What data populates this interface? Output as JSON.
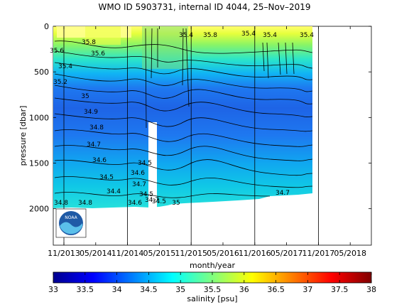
{
  "chart_data": {
    "type": "heatmap",
    "title": "WMO ID 5903731, internal ID 4044, 25–Nov–2019",
    "xlabel": "month/year",
    "ylabel": "pressure [dbar]",
    "x_ticks": [
      "11/2013",
      "05/2014",
      "11/2014",
      "05/2015",
      "11/2015",
      "05/2016",
      "11/2016",
      "05/2017",
      "11/2017",
      "05/2018"
    ],
    "y_ticks": [
      "0",
      "500",
      "1000",
      "1500",
      "2000"
    ],
    "ylim": [
      0,
      2400
    ],
    "y_reversed": true,
    "colorbar": {
      "label": "salinity [psu]",
      "range": [
        33,
        38
      ],
      "ticks": [
        "33",
        "33.5",
        "34",
        "34.5",
        "35",
        "35.5",
        "36",
        "36.5",
        "37",
        "37.5",
        "38"
      ],
      "colormap": "jet"
    },
    "data_extent": {
      "x_start": "11/2013",
      "x_end": "11/2017",
      "bottom_pressure_dbar": 2000
    },
    "contour_labels": [
      "35.8",
      "35.6",
      "35.6",
      "35.4",
      "35.2",
      "35",
      "34.9",
      "34.8",
      "34.7",
      "34.6",
      "34.5",
      "34.4",
      "34.7",
      "34.6",
      "34.5",
      "34.8",
      "34.8",
      "34.6",
      "34.7",
      "35",
      "34.5",
      "34.5",
      "35.4",
      "35.8",
      "35.4",
      "35.4",
      "34.7",
      "35.4"
    ],
    "grid": {
      "vertical_lines": true,
      "horizontal_lines": false
    },
    "colors": {
      "fresh": "#0000b8",
      "mid": "#00c8e6",
      "salty": "#ffff00",
      "max": "#800000",
      "mask": "#ffffff"
    }
  },
  "logo": {
    "text": "NOAA"
  }
}
